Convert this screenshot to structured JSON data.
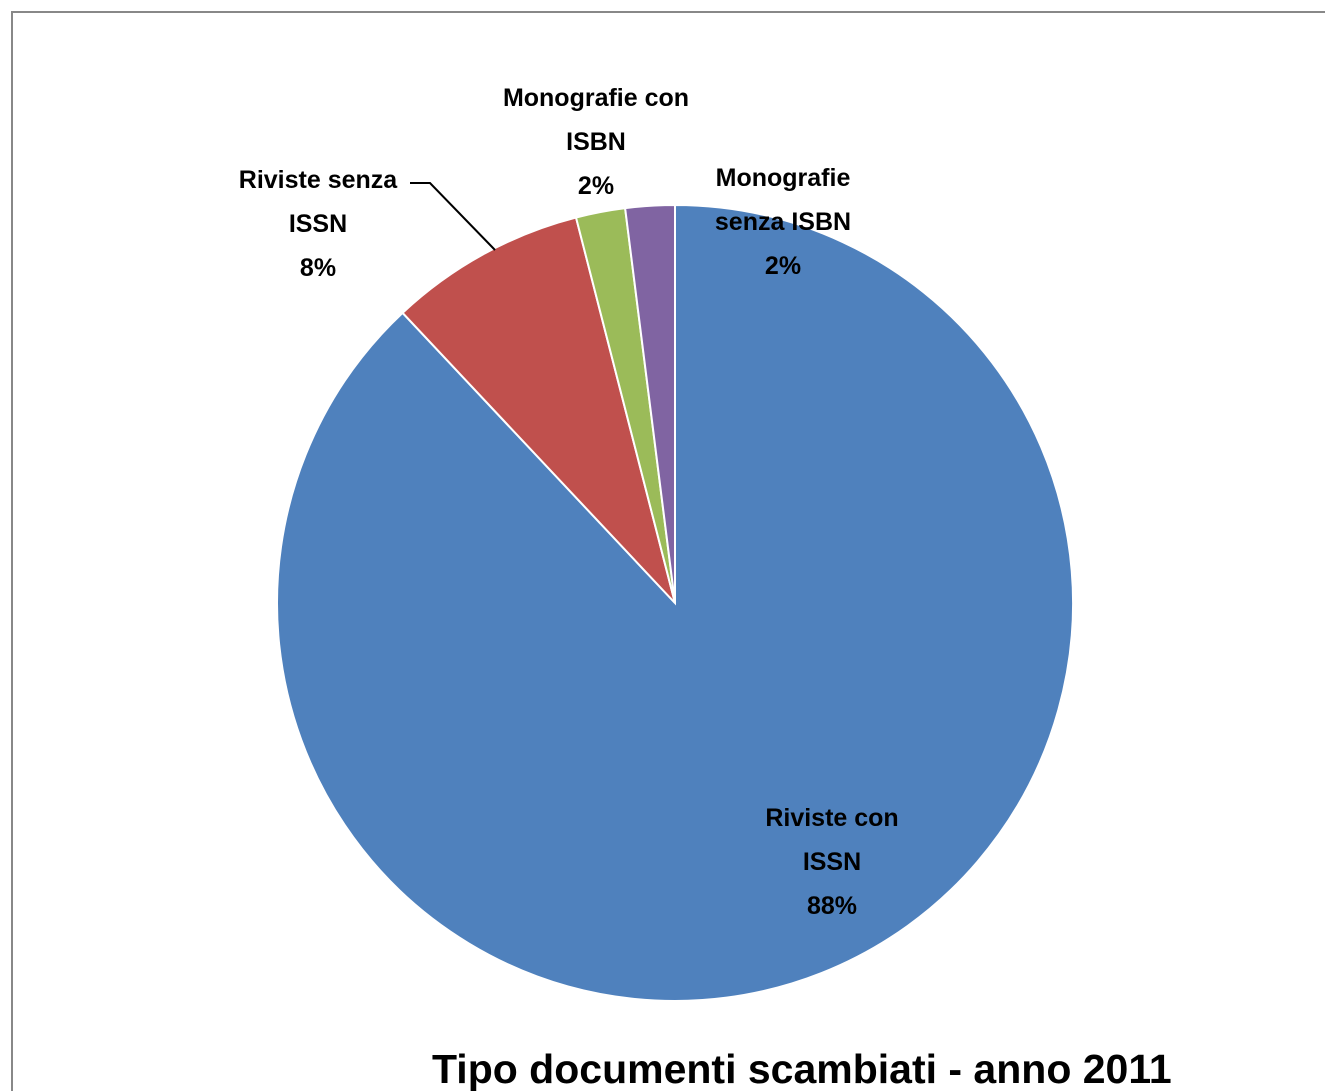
{
  "chart_data": {
    "type": "pie",
    "title": "Tipo documenti scambiati - anno 2011",
    "categories": [
      "Riviste con ISSN",
      "Riviste senza ISSN",
      "Monografie con ISBN",
      "Monografie senza ISBN"
    ],
    "values": [
      88,
      8,
      2,
      2
    ],
    "value_labels": [
      "88%",
      "8%",
      "2%",
      "2%"
    ],
    "colors": [
      "#4f81bd",
      "#c0504d",
      "#9bbb59",
      "#8064a2"
    ]
  }
}
